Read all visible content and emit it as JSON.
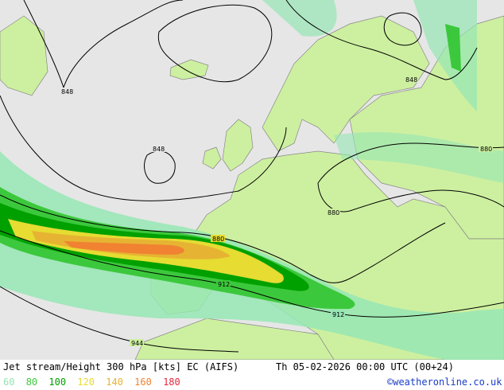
{
  "map": {
    "contour_labels": [
      "848",
      "848",
      "848",
      "880",
      "880",
      "880",
      "912",
      "912",
      "944"
    ]
  },
  "footer": {
    "title": "Jet stream/Height 300 hPa [kts] EC (AIFS)",
    "datetime": "Th 05-02-2026 00:00 UTC (00+24)",
    "credit": "©weatheronline.co.uk",
    "legend": [
      {
        "label": "60",
        "color": "#96e6b4"
      },
      {
        "label": "80",
        "color": "#3cc83c"
      },
      {
        "label": "100",
        "color": "#00a000"
      },
      {
        "label": "120",
        "color": "#e6dc32"
      },
      {
        "label": "140",
        "color": "#e6b432"
      },
      {
        "label": "160",
        "color": "#f08232"
      },
      {
        "label": "180",
        "color": "#e6283c"
      }
    ]
  }
}
